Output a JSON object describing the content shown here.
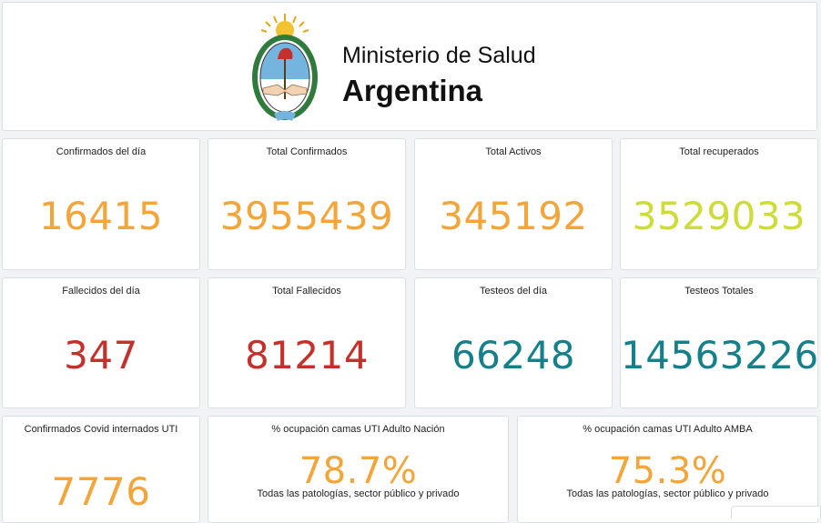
{
  "header": {
    "org_line1": "Ministerio de Salud",
    "org_line2": "Argentina",
    "emblem_icon": "argentina-coat-of-arms-icon"
  },
  "colors": {
    "orange": "#f3a53a",
    "lime": "#cddc39",
    "red": "#c4302b",
    "teal": "#16808a"
  },
  "cards": [
    {
      "label": "Confirmados del día",
      "value": "16415"
    },
    {
      "label": "Total Confirmados",
      "value": "3955439"
    },
    {
      "label": "Total Activos",
      "value": "345192"
    },
    {
      "label": "Total recuperados",
      "value": "3529033"
    },
    {
      "label": "Fallecidos del día",
      "value": "347"
    },
    {
      "label": "Total Fallecidos",
      "value": "81214"
    },
    {
      "label": "Testeos del día",
      "value": "66248"
    },
    {
      "label": "Testeos Totales",
      "value": "14563226"
    },
    {
      "label": "Confirmados Covid internados UTI",
      "value": "7776"
    },
    {
      "label": "% ocupación camas UTI Adulto Nación",
      "value": "78.7%",
      "sub": "Todas las patologías, sector público y privado"
    },
    {
      "label": "% ocupación camas UTI Adulto AMBA",
      "value": "75.3%",
      "sub": "Todas las patologías, sector público y privado"
    }
  ]
}
